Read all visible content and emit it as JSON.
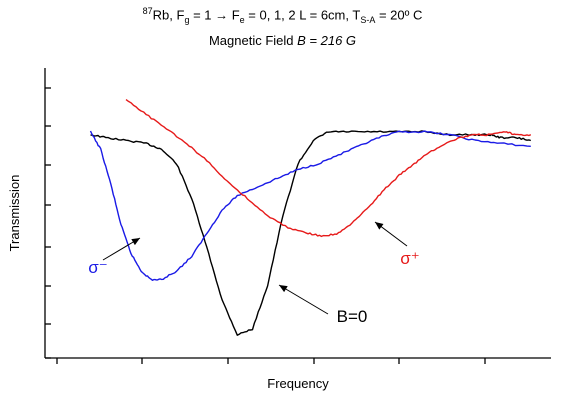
{
  "title": {
    "iso_mass": "87",
    "element": "Rb, F",
    "g_sub": "g",
    "transition": " = 1 → F",
    "e_sub": "e",
    "rest": " = 0, 1, 2   L = 6cm, T",
    "sa_sub": "S-A",
    "temp": " = 20º C"
  },
  "subtitle": {
    "prefix": "Magnetic Field ",
    "value": "B = 216 G"
  },
  "chart_data": {
    "type": "line",
    "xlabel": "Frequency",
    "ylabel": "Transmission",
    "x_ticks_labeled": false,
    "y_ticks_labeled": false,
    "x_units": "arbitrary",
    "y_units": "arbitrary",
    "ylim": [
      0,
      1
    ],
    "xlim": [
      0,
      1
    ],
    "series": [
      {
        "label": "B=0",
        "color": "#000000",
        "x": [
          0.09,
          0.12,
          0.16,
          0.2,
          0.23,
          0.26,
          0.29,
          0.32,
          0.35,
          0.38,
          0.41,
          0.44,
          0.47,
          0.5,
          0.53,
          0.56,
          0.6,
          0.65,
          0.7,
          0.75,
          0.8,
          0.85,
          0.88,
          0.9,
          0.93,
          0.96
        ],
        "y": [
          0.77,
          0.76,
          0.75,
          0.74,
          0.72,
          0.67,
          0.55,
          0.38,
          0.2,
          0.08,
          0.1,
          0.25,
          0.49,
          0.67,
          0.75,
          0.78,
          0.78,
          0.78,
          0.78,
          0.78,
          0.77,
          0.77,
          0.77,
          0.76,
          0.76,
          0.75
        ]
      },
      {
        "label": "σ⁻",
        "color": "#1a1ae6",
        "x": [
          0.09,
          0.11,
          0.13,
          0.15,
          0.17,
          0.19,
          0.21,
          0.23,
          0.26,
          0.29,
          0.32,
          0.35,
          0.38,
          0.42,
          0.46,
          0.5,
          0.54,
          0.58,
          0.62,
          0.66,
          0.7,
          0.75,
          0.8,
          0.85,
          0.9,
          0.96
        ],
        "y": [
          0.78,
          0.72,
          0.6,
          0.46,
          0.36,
          0.3,
          0.27,
          0.27,
          0.3,
          0.35,
          0.43,
          0.51,
          0.56,
          0.59,
          0.62,
          0.65,
          0.67,
          0.7,
          0.73,
          0.76,
          0.78,
          0.78,
          0.77,
          0.75,
          0.74,
          0.73
        ]
      },
      {
        "label": "σ⁺",
        "color": "#e61a1a",
        "x": [
          0.16,
          0.2,
          0.24,
          0.28,
          0.32,
          0.36,
          0.4,
          0.44,
          0.48,
          0.52,
          0.55,
          0.58,
          0.61,
          0.64,
          0.67,
          0.7,
          0.73,
          0.76,
          0.79,
          0.82,
          0.85,
          0.88,
          0.91,
          0.93,
          0.96
        ],
        "y": [
          0.89,
          0.84,
          0.79,
          0.74,
          0.68,
          0.61,
          0.55,
          0.49,
          0.45,
          0.43,
          0.42,
          0.43,
          0.47,
          0.52,
          0.58,
          0.63,
          0.67,
          0.71,
          0.74,
          0.76,
          0.77,
          0.77,
          0.78,
          0.77,
          0.77
        ]
      }
    ],
    "annotations": [
      {
        "text": "σ⁻",
        "series": 1,
        "color": "#1a1ae6"
      },
      {
        "text": "σ⁺",
        "series": 2,
        "color": "#e61a1a"
      },
      {
        "text": "B=0",
        "series": 0,
        "color": "#000000"
      }
    ]
  }
}
